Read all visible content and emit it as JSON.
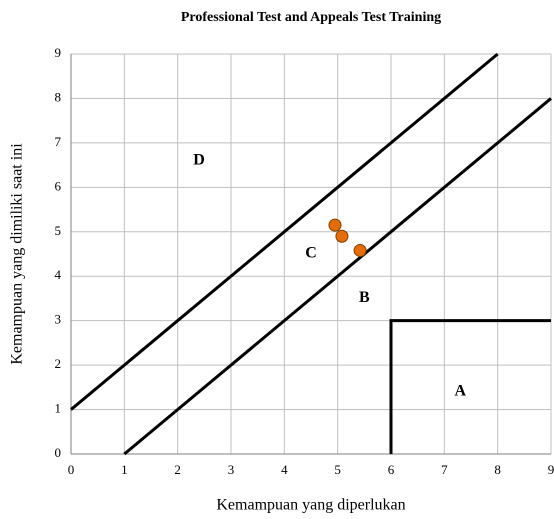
{
  "chart_data": {
    "type": "scatter",
    "title": "Professional Test and Appeals Test Training",
    "x_label": "Kemampuan yang diperlukan",
    "y_label": "Kemampuan yang dimiliki saat ini",
    "xlim": [
      0,
      9
    ],
    "ylim": [
      0,
      9
    ],
    "xticks": [
      0,
      1,
      2,
      3,
      4,
      5,
      6,
      7,
      8,
      9
    ],
    "yticks": [
      0,
      1,
      2,
      3,
      4,
      5,
      6,
      7,
      8,
      9
    ],
    "grid": true,
    "series": [
      {
        "color": "#e46c0a",
        "x": [
          4.95,
          5.08,
          5.42
        ],
        "y": [
          5.15,
          4.9,
          4.58
        ]
      }
    ],
    "lines": [
      {
        "color": "#000000",
        "x": [
          0,
          8
        ],
        "y": [
          1,
          9
        ]
      },
      {
        "color": "#000000",
        "x": [
          1,
          9
        ],
        "y": [
          0,
          8
        ]
      },
      {
        "color": "#000000",
        "x": [
          6,
          6,
          9
        ],
        "y": [
          0,
          3,
          3
        ]
      }
    ],
    "annotations": [
      {
        "text": "D",
        "x": 2.4,
        "y": 6.6
      },
      {
        "text": "C",
        "x": 4.5,
        "y": 4.5
      },
      {
        "text": "B",
        "x": 5.5,
        "y": 3.5
      },
      {
        "text": "A",
        "x": 7.3,
        "y": 1.4
      }
    ]
  }
}
